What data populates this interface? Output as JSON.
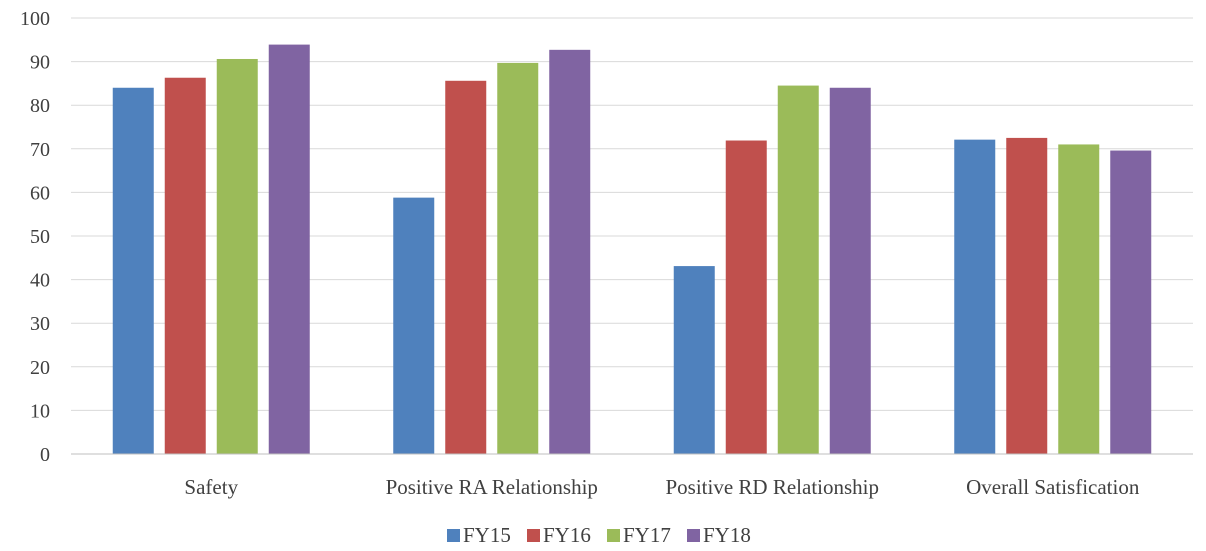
{
  "chart_data": {
    "type": "bar",
    "categories": [
      "Safety",
      "Positive RA Relationship",
      "Positive RD Relationship",
      "Overall Satisfication"
    ],
    "series": [
      {
        "name": "FY15",
        "color": "#4f81bd",
        "values": [
          84,
          58.8,
          43.1,
          72.1
        ]
      },
      {
        "name": "FY16",
        "color": "#c0504d",
        "values": [
          86.3,
          85.6,
          71.9,
          72.5
        ]
      },
      {
        "name": "FY17",
        "color": "#9bbb59",
        "values": [
          90.6,
          89.7,
          84.5,
          71
        ]
      },
      {
        "name": "FY18",
        "color": "#8064a2",
        "values": [
          93.9,
          92.7,
          84,
          69.6
        ]
      }
    ],
    "ylim": [
      0,
      100
    ],
    "yticks": [
      0,
      10,
      20,
      30,
      40,
      50,
      60,
      70,
      80,
      90,
      100
    ],
    "grid": true,
    "legend": "bottom-center",
    "title": "",
    "xlabel": "",
    "ylabel": ""
  }
}
